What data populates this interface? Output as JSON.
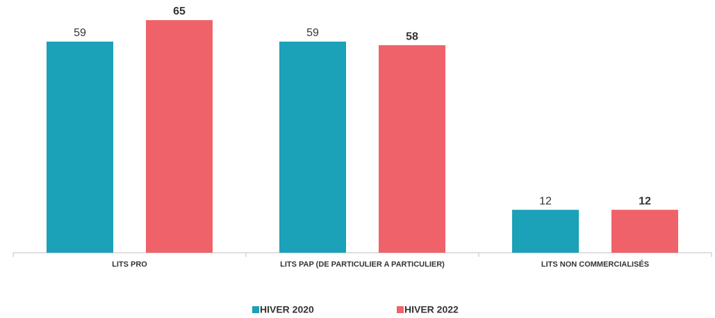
{
  "chart_data": {
    "type": "bar",
    "categories": [
      "LITS PRO",
      "LITS PAP (DE PARTICULIER A PARTICULIER)",
      "LITS NON COMMERCIALISÉS"
    ],
    "series": [
      {
        "name": "HIVER 2020",
        "color": "#1ba1b8",
        "values": [
          59,
          59,
          12
        ]
      },
      {
        "name": "HIVER 2022",
        "color": "#f0626a",
        "values": [
          65,
          58,
          12
        ]
      }
    ]
  }
}
